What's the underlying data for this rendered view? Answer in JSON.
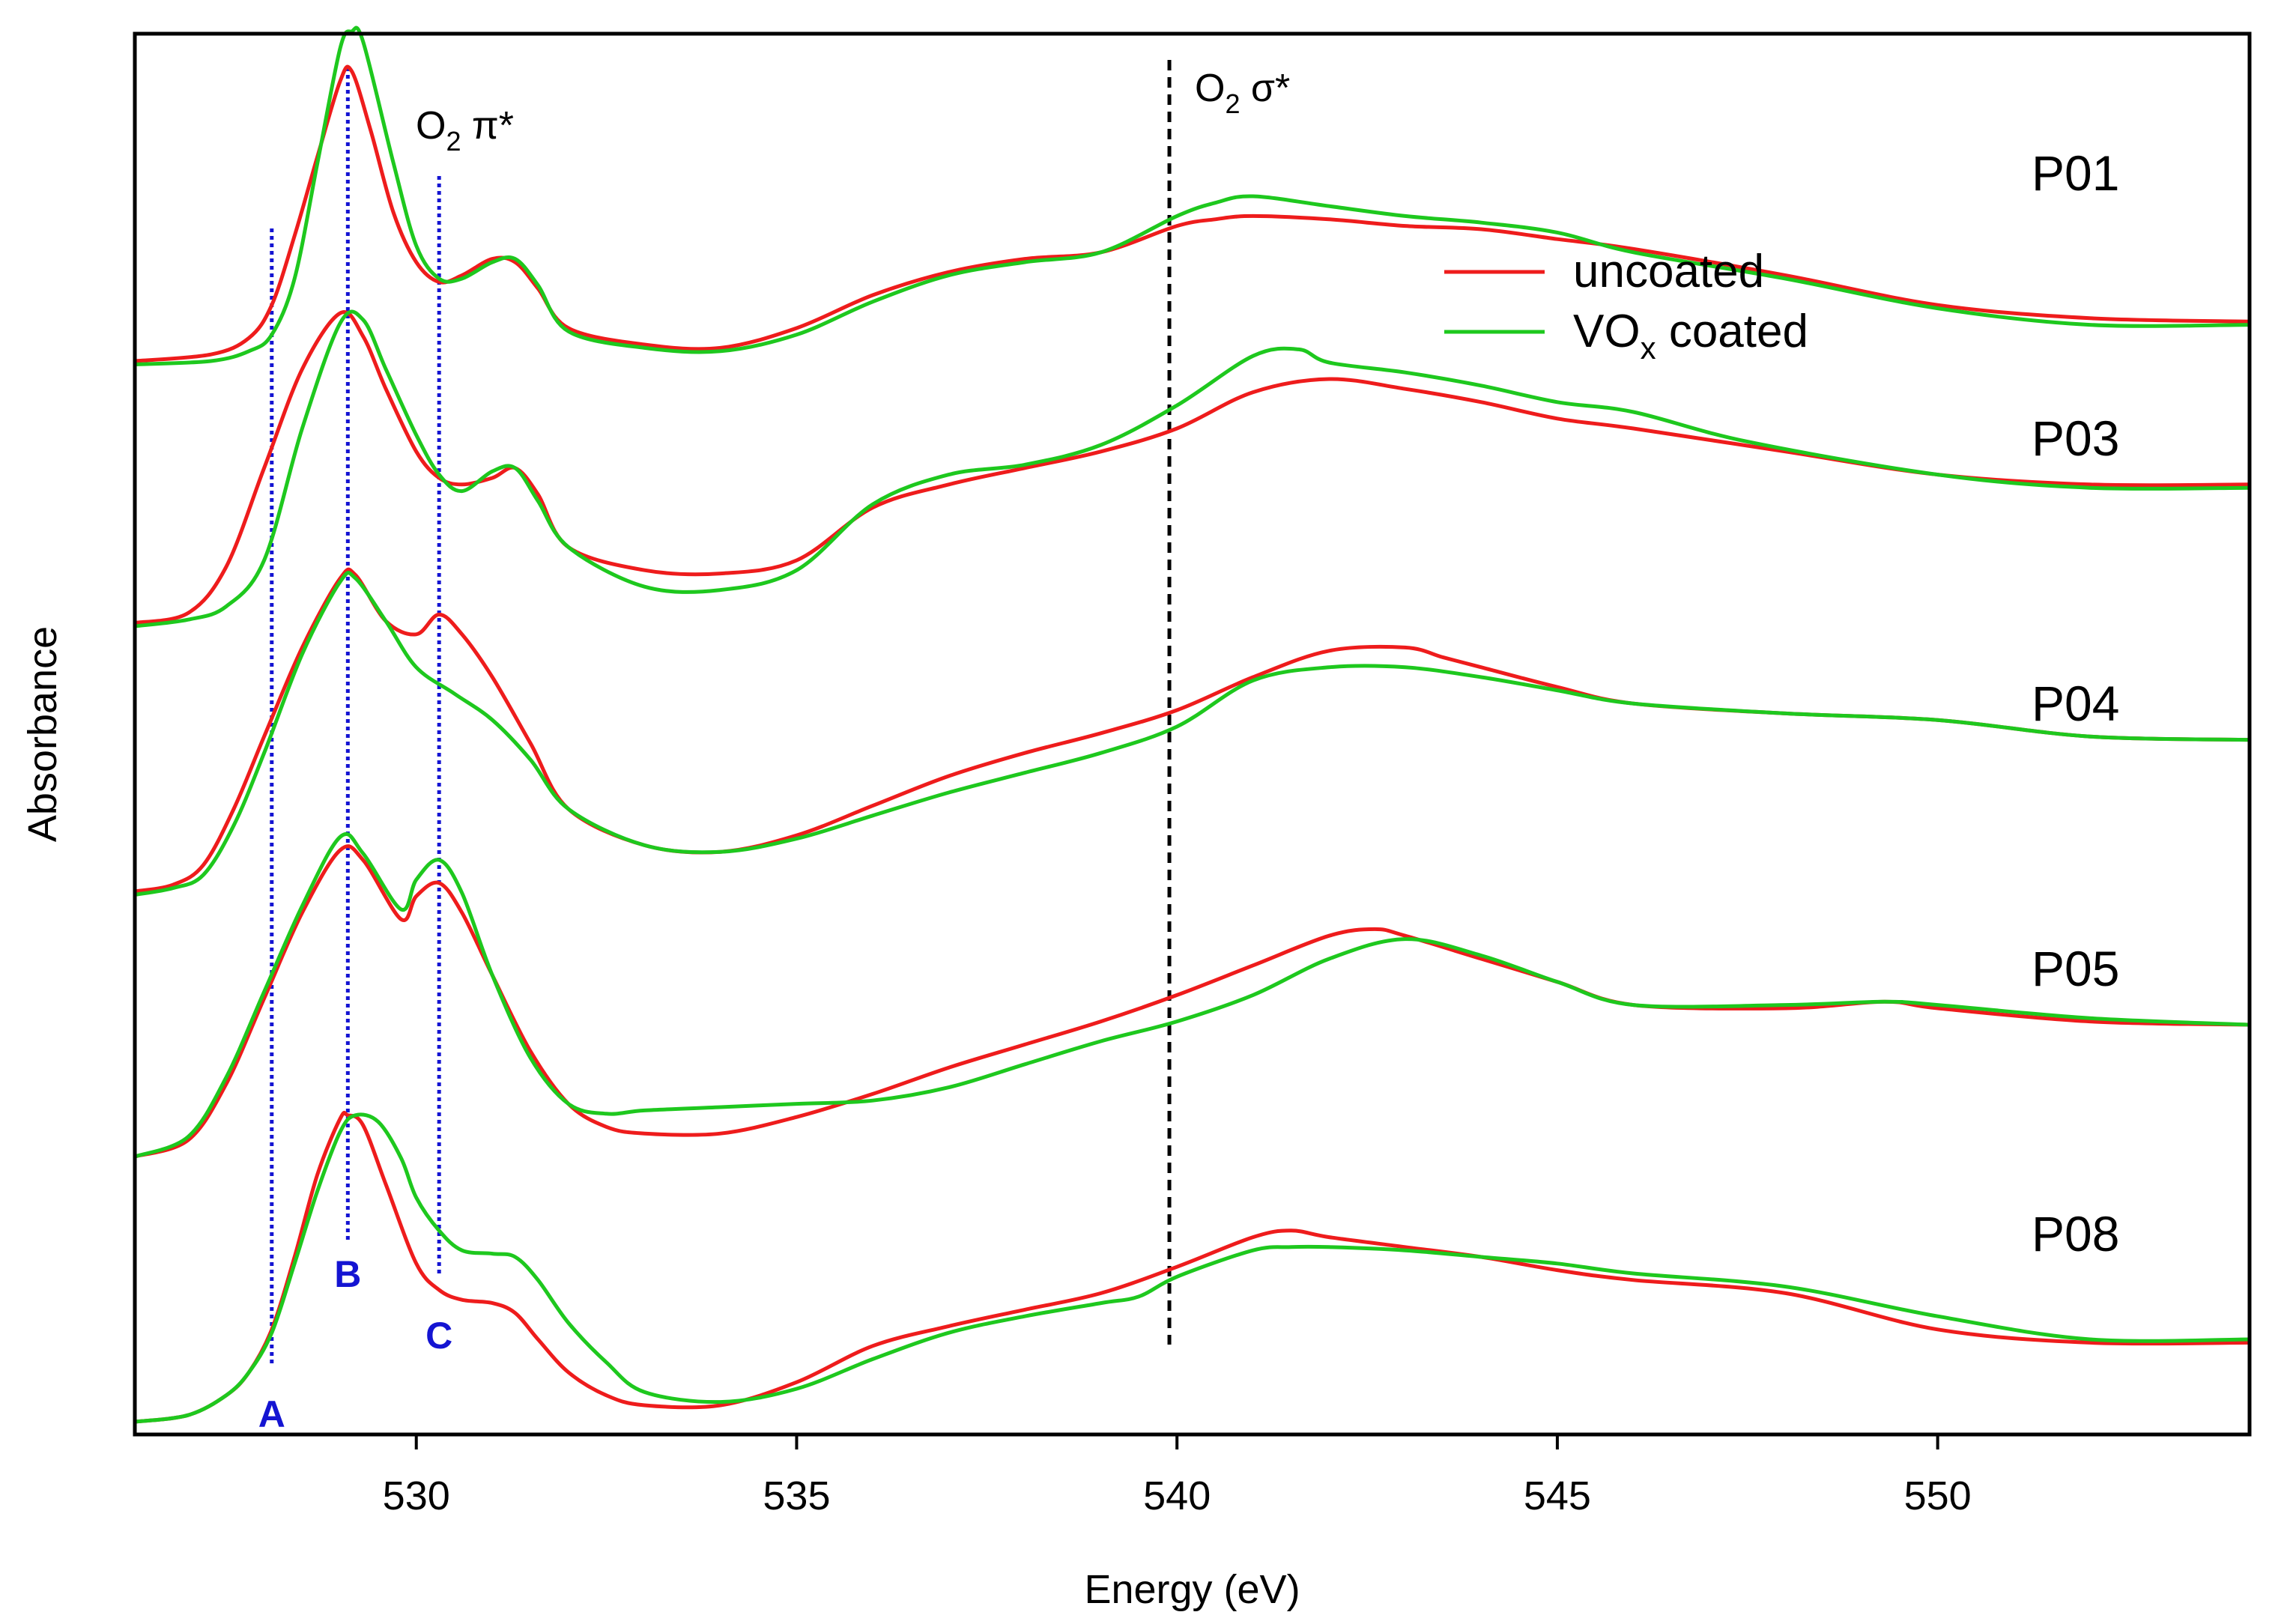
{
  "chart_data": {
    "type": "line",
    "title": "",
    "xlabel": "Energy (eV)",
    "ylabel": "Absorbance",
    "xlim": [
      526.3,
      554.1
    ],
    "xticks": [
      530,
      535,
      540,
      545,
      550
    ],
    "xtick_labels": [
      "530",
      "535",
      "540",
      "545",
      "550"
    ],
    "yticks": [],
    "legend": {
      "position": "top-right",
      "entries": [
        {
          "label": "uncoated",
          "color": "#ee1c1c"
        },
        {
          "label": "VO",
          "subscript": "x",
          "suffix": " coated",
          "color": "#1ec81e"
        }
      ]
    },
    "colors": {
      "uncoated": "#ee1c1c",
      "coated": "#1ec81e",
      "marker_lines": "#1414d2",
      "sigma_line": "#000000"
    },
    "annotations": {
      "pi_star": {
        "main": "O",
        "sub": "2",
        "rest": " π*"
      },
      "sigma_star": {
        "main": "O",
        "sub": "2",
        "rest": " σ*"
      },
      "feature_markers": [
        {
          "label": "A",
          "energy": 528.1
        },
        {
          "label": "B",
          "energy": 529.1
        },
        {
          "label": "C",
          "energy": 530.3
        }
      ],
      "sigma_line_energy": 539.9
    },
    "y_units": "arbitrary (offset stacked spectra)",
    "series_groups": [
      {
        "name": "P01",
        "offset": 4,
        "uncoated": {
          "x": [
            526.3,
            527.3,
            527.8,
            528.1,
            528.4,
            528.7,
            529.0,
            529.15,
            529.4,
            529.7,
            530.0,
            530.3,
            530.6,
            531.0,
            531.3,
            531.6,
            532.0,
            533.0,
            534.0,
            535.0,
            536.0,
            537.0,
            538.0,
            539.0,
            540.0,
            540.5,
            541.0,
            542.0,
            543.0,
            544.0,
            545.0,
            546.0,
            548.0,
            550.0,
            552.0,
            554.1
          ],
          "y": [
            0.0,
            0.02,
            0.07,
            0.17,
            0.38,
            0.62,
            0.85,
            0.88,
            0.7,
            0.45,
            0.3,
            0.24,
            0.26,
            0.31,
            0.3,
            0.22,
            0.1,
            0.05,
            0.04,
            0.1,
            0.2,
            0.27,
            0.31,
            0.33,
            0.41,
            0.43,
            0.44,
            0.43,
            0.41,
            0.4,
            0.37,
            0.34,
            0.26,
            0.17,
            0.13,
            0.12
          ]
        },
        "coated": {
          "x": [
            526.3,
            527.3,
            527.8,
            528.1,
            528.4,
            528.7,
            529.0,
            529.15,
            529.3,
            529.7,
            530.0,
            530.3,
            530.6,
            531.0,
            531.3,
            531.6,
            532.0,
            533.0,
            534.0,
            535.0,
            536.0,
            537.0,
            538.0,
            539.0,
            540.0,
            540.5,
            541.0,
            542.0,
            543.0,
            544.0,
            545.0,
            546.0,
            548.0,
            550.0,
            552.0,
            554.1
          ],
          "y": [
            -0.01,
            0.0,
            0.03,
            0.08,
            0.25,
            0.6,
            0.95,
            1.0,
            0.97,
            0.6,
            0.35,
            0.25,
            0.25,
            0.3,
            0.31,
            0.23,
            0.09,
            0.04,
            0.03,
            0.08,
            0.18,
            0.26,
            0.3,
            0.33,
            0.44,
            0.48,
            0.5,
            0.47,
            0.44,
            0.42,
            0.39,
            0.33,
            0.25,
            0.16,
            0.11,
            0.11
          ]
        }
      },
      {
        "name": "P03",
        "offset": 3,
        "uncoated": {
          "x": [
            526.3,
            527.0,
            527.5,
            528.0,
            528.5,
            529.0,
            529.3,
            529.6,
            530.0,
            530.3,
            530.6,
            531.0,
            531.3,
            531.6,
            532.0,
            533.0,
            534.0,
            535.0,
            536.0,
            537.0,
            538.0,
            539.0,
            540.0,
            541.0,
            542.0,
            543.0,
            544.0,
            545.0,
            546.0,
            548.0,
            550.0,
            552.0,
            554.1
          ],
          "y": [
            0.01,
            0.04,
            0.18,
            0.48,
            0.78,
            0.95,
            0.88,
            0.72,
            0.53,
            0.45,
            0.43,
            0.45,
            0.48,
            0.4,
            0.24,
            0.17,
            0.16,
            0.2,
            0.36,
            0.43,
            0.48,
            0.53,
            0.6,
            0.71,
            0.75,
            0.72,
            0.68,
            0.63,
            0.6,
            0.53,
            0.46,
            0.43,
            0.43
          ]
        },
        "coated": {
          "x": [
            526.3,
            527.0,
            527.5,
            528.0,
            528.5,
            529.0,
            529.3,
            529.6,
            530.0,
            530.3,
            530.6,
            531.0,
            531.3,
            531.6,
            532.0,
            533.0,
            534.0,
            535.0,
            536.0,
            537.0,
            538.0,
            539.0,
            540.0,
            541.0,
            541.6,
            542.0,
            543.0,
            544.0,
            545.0,
            546.0,
            547.5,
            550.0,
            552.0,
            554.1
          ],
          "y": [
            0.0,
            0.02,
            0.06,
            0.2,
            0.6,
            0.92,
            0.93,
            0.78,
            0.58,
            0.46,
            0.41,
            0.47,
            0.48,
            0.38,
            0.24,
            0.12,
            0.11,
            0.17,
            0.37,
            0.46,
            0.49,
            0.55,
            0.67,
            0.82,
            0.84,
            0.8,
            0.77,
            0.73,
            0.68,
            0.65,
            0.56,
            0.46,
            0.42,
            0.42
          ]
        }
      },
      {
        "name": "P04",
        "offset": 2,
        "uncoated": {
          "x": [
            526.3,
            526.8,
            527.2,
            527.6,
            528.0,
            528.5,
            529.0,
            529.2,
            529.6,
            530.0,
            530.3,
            530.6,
            531.0,
            531.5,
            532.0,
            533.0,
            534.0,
            535.0,
            536.0,
            537.0,
            538.0,
            539.0,
            540.0,
            541.0,
            542.0,
            543.0,
            543.5,
            544.0,
            545.0,
            546.0,
            548.0,
            550.0,
            552.0,
            554.1
          ],
          "y": [
            0.0,
            0.02,
            0.08,
            0.25,
            0.47,
            0.74,
            0.95,
            0.96,
            0.82,
            0.78,
            0.84,
            0.78,
            0.65,
            0.45,
            0.25,
            0.14,
            0.12,
            0.17,
            0.26,
            0.35,
            0.42,
            0.48,
            0.55,
            0.65,
            0.73,
            0.74,
            0.71,
            0.68,
            0.62,
            0.57,
            0.54,
            0.52,
            0.47,
            0.46
          ]
        },
        "coated": {
          "x": [
            526.3,
            526.8,
            527.2,
            527.6,
            528.0,
            528.5,
            529.0,
            529.2,
            529.6,
            530.0,
            530.5,
            531.0,
            531.5,
            532.0,
            533.0,
            534.0,
            535.0,
            536.0,
            537.0,
            538.0,
            539.0,
            540.0,
            541.0,
            542.0,
            543.0,
            544.0,
            545.0,
            546.0,
            548.0,
            550.0,
            552.0,
            554.1
          ],
          "y": [
            -0.01,
            0.01,
            0.05,
            0.2,
            0.42,
            0.72,
            0.94,
            0.95,
            0.82,
            0.68,
            0.6,
            0.52,
            0.4,
            0.25,
            0.14,
            0.12,
            0.16,
            0.23,
            0.3,
            0.36,
            0.42,
            0.5,
            0.64,
            0.68,
            0.68,
            0.65,
            0.61,
            0.57,
            0.54,
            0.52,
            0.47,
            0.46
          ]
        }
      },
      {
        "name": "P05",
        "offset": 1,
        "uncoated": {
          "x": [
            526.3,
            527.0,
            527.5,
            528.0,
            528.5,
            529.0,
            529.3,
            529.8,
            530.0,
            530.3,
            530.6,
            531.0,
            531.5,
            532.0,
            532.5,
            533.0,
            534.0,
            535.0,
            536.0,
            537.0,
            538.0,
            539.0,
            540.0,
            541.0,
            542.0,
            542.6,
            543.0,
            544.0,
            545.0,
            546.0,
            548.0,
            549.3,
            550.0,
            552.0,
            554.1
          ],
          "y": [
            0.0,
            0.05,
            0.22,
            0.48,
            0.74,
            0.93,
            0.9,
            0.72,
            0.79,
            0.83,
            0.74,
            0.55,
            0.32,
            0.16,
            0.09,
            0.07,
            0.07,
            0.12,
            0.19,
            0.27,
            0.34,
            0.41,
            0.49,
            0.58,
            0.67,
            0.69,
            0.67,
            0.6,
            0.53,
            0.46,
            0.45,
            0.47,
            0.45,
            0.41,
            0.4
          ]
        },
        "coated": {
          "x": [
            526.3,
            527.0,
            527.5,
            528.0,
            528.5,
            529.0,
            529.3,
            529.8,
            530.0,
            530.3,
            530.6,
            531.0,
            531.5,
            532.0,
            532.5,
            533.0,
            534.0,
            535.0,
            536.0,
            537.0,
            538.0,
            539.0,
            540.0,
            541.0,
            542.0,
            543.0,
            544.0,
            545.0,
            546.0,
            548.0,
            549.3,
            550.0,
            552.0,
            554.1
          ],
          "y": [
            0.0,
            0.06,
            0.24,
            0.5,
            0.76,
            0.97,
            0.92,
            0.75,
            0.84,
            0.9,
            0.8,
            0.55,
            0.3,
            0.16,
            0.13,
            0.14,
            0.15,
            0.16,
            0.17,
            0.21,
            0.28,
            0.35,
            0.41,
            0.49,
            0.6,
            0.66,
            0.61,
            0.53,
            0.46,
            0.46,
            0.47,
            0.46,
            0.42,
            0.4
          ]
        }
      },
      {
        "name": "P08",
        "offset": 0,
        "uncoated": {
          "x": [
            526.3,
            527.0,
            527.5,
            527.8,
            528.1,
            528.4,
            528.7,
            529.0,
            529.1,
            529.3,
            529.6,
            530.0,
            530.3,
            530.6,
            531.0,
            531.3,
            531.6,
            532.0,
            532.5,
            533.0,
            534.0,
            535.0,
            536.0,
            537.0,
            538.0,
            539.0,
            540.0,
            541.0,
            541.5,
            542.0,
            543.0,
            544.0,
            545.0,
            546.0,
            548.0,
            550.0,
            552.0,
            554.1
          ],
          "y": [
            0.0,
            0.02,
            0.08,
            0.15,
            0.28,
            0.5,
            0.75,
            0.92,
            0.93,
            0.9,
            0.72,
            0.48,
            0.4,
            0.37,
            0.36,
            0.33,
            0.25,
            0.15,
            0.08,
            0.05,
            0.05,
            0.12,
            0.23,
            0.29,
            0.34,
            0.39,
            0.47,
            0.56,
            0.58,
            0.56,
            0.53,
            0.5,
            0.46,
            0.43,
            0.39,
            0.28,
            0.24,
            0.24
          ]
        },
        "coated": {
          "x": [
            526.3,
            527.0,
            527.5,
            527.8,
            528.1,
            528.4,
            528.7,
            529.0,
            529.2,
            529.5,
            529.8,
            530.0,
            530.3,
            530.6,
            531.0,
            531.3,
            531.6,
            532.0,
            532.5,
            533.0,
            534.0,
            535.0,
            536.0,
            537.0,
            538.0,
            539.0,
            539.5,
            540.0,
            541.0,
            541.5,
            542.0,
            543.0,
            544.0,
            545.0,
            546.0,
            548.0,
            550.0,
            552.0,
            554.1
          ],
          "y": [
            0.0,
            0.02,
            0.08,
            0.15,
            0.27,
            0.48,
            0.7,
            0.88,
            0.93,
            0.91,
            0.8,
            0.68,
            0.58,
            0.52,
            0.51,
            0.5,
            0.43,
            0.3,
            0.18,
            0.09,
            0.06,
            0.1,
            0.19,
            0.27,
            0.32,
            0.36,
            0.38,
            0.44,
            0.52,
            0.53,
            0.53,
            0.52,
            0.5,
            0.48,
            0.45,
            0.41,
            0.32,
            0.25,
            0.25
          ]
        }
      }
    ]
  }
}
